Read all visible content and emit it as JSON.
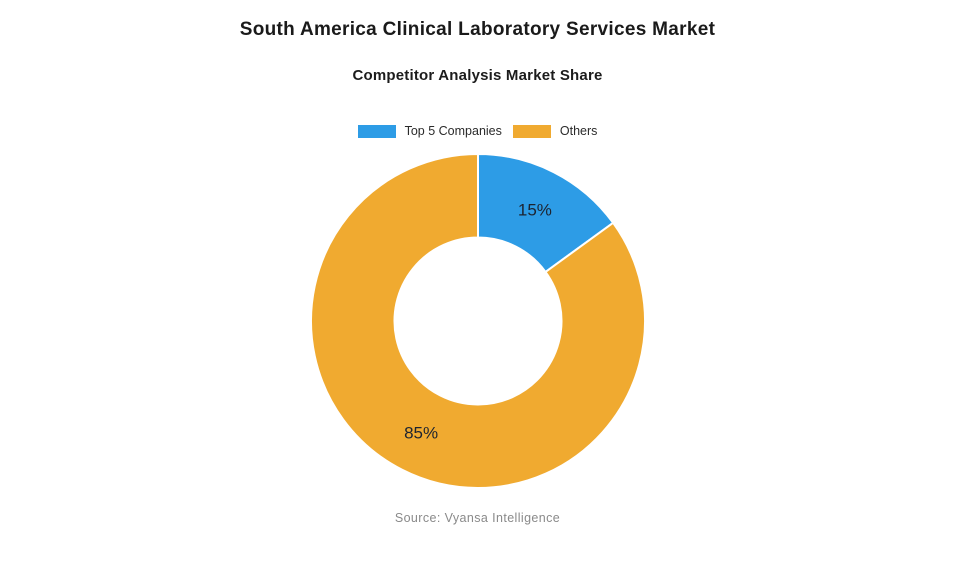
{
  "page": {
    "title": "South America Clinical Laboratory Services Market",
    "subtitle": "Competitor Analysis Market Share",
    "source": "Source: Vyansa Intelligence"
  },
  "chart_data": {
    "type": "pie",
    "variant": "donut",
    "title": "Competitor Analysis Market Share",
    "categories": [
      "Top 5 Companies",
      "Others"
    ],
    "values": [
      15,
      85
    ],
    "data_labels": [
      "15%",
      "85%"
    ],
    "colors": [
      "#2D9CE6",
      "#F0AA30"
    ],
    "start_angle_deg": 0,
    "direction": "clockwise",
    "inner_radius_ratio": 0.5,
    "legend_position": "top"
  }
}
